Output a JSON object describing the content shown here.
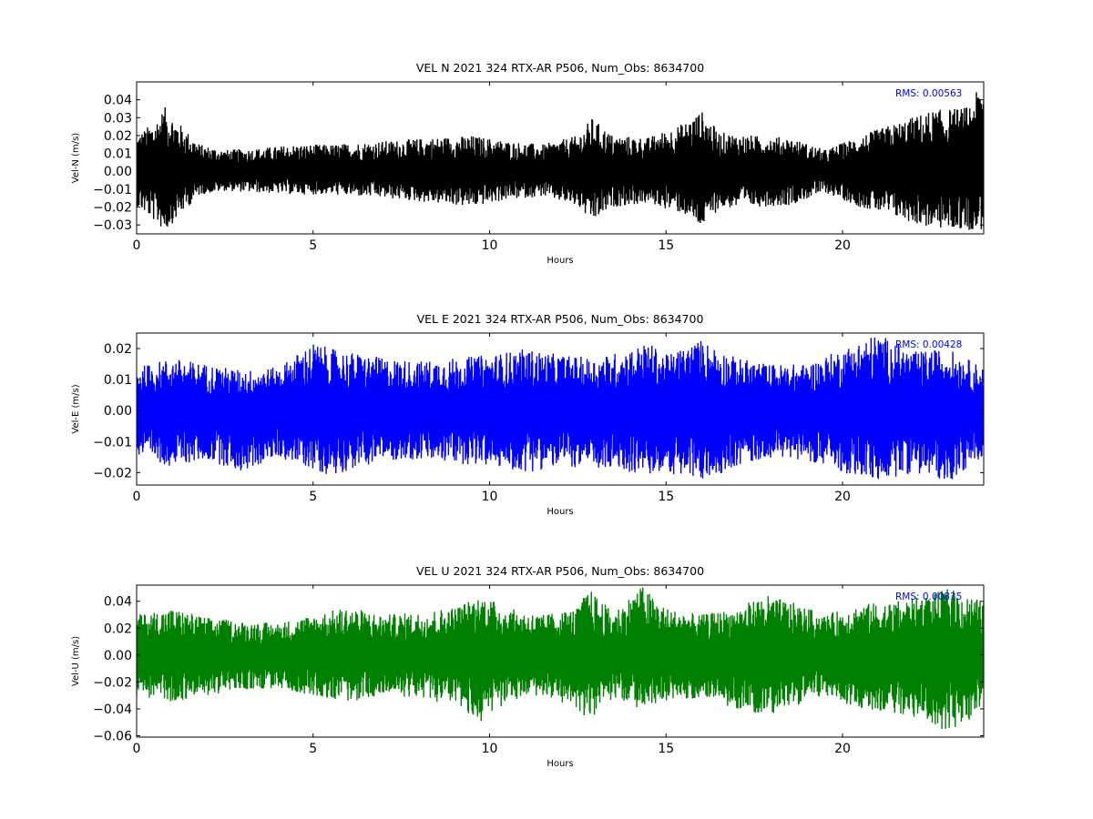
{
  "chart_data": [
    {
      "type": "line",
      "title": "VEL N 2021 324 RTX-AR  P506, Num_Obs: 8634700",
      "xlabel": "Hours",
      "ylabel": "Vel-N (m/s)",
      "xlim": [
        0,
        24
      ],
      "ylim": [
        -0.035,
        0.05
      ],
      "xticks": [
        0,
        5,
        10,
        15,
        20
      ],
      "yticks": [
        -0.03,
        -0.02,
        -0.01,
        0.0,
        0.01,
        0.02,
        0.03,
        0.04
      ],
      "ytick_labels": [
        "−0.03",
        "−0.02",
        "−0.01",
        "0.00",
        "0.01",
        "0.02",
        "0.03",
        "0.04"
      ],
      "annotation": "RMS:  0.00563",
      "annotation_color": "#0000ff",
      "series_color": "#000000",
      "rms": 0.00563,
      "envelope": {
        "x": [
          0,
          0.5,
          0.8,
          1.2,
          1.8,
          2.5,
          3.5,
          4.5,
          5.5,
          7,
          8.5,
          9.5,
          10.5,
          11.5,
          12.5,
          12.9,
          13.5,
          14.5,
          15.5,
          16,
          16.5,
          17.5,
          18.5,
          19.5,
          20.5,
          21.5,
          22.5,
          23.5,
          24
        ],
        "max": [
          0.02,
          0.028,
          0.036,
          0.027,
          0.015,
          0.012,
          0.013,
          0.015,
          0.015,
          0.017,
          0.019,
          0.02,
          0.017,
          0.015,
          0.02,
          0.03,
          0.02,
          0.019,
          0.027,
          0.034,
          0.022,
          0.02,
          0.019,
          0.012,
          0.02,
          0.027,
          0.034,
          0.036,
          0.05
        ],
        "min": [
          -0.02,
          -0.028,
          -0.034,
          -0.025,
          -0.013,
          -0.011,
          -0.012,
          -0.013,
          -0.013,
          -0.015,
          -0.018,
          -0.02,
          -0.016,
          -0.014,
          -0.02,
          -0.029,
          -0.02,
          -0.018,
          -0.024,
          -0.032,
          -0.021,
          -0.02,
          -0.019,
          -0.012,
          -0.02,
          -0.026,
          -0.032,
          -0.033,
          -0.033
        ]
      }
    },
    {
      "type": "line",
      "title": "VEL E 2021 324 RTX-AR  P506, Num_Obs: 8634700",
      "xlabel": "Hours",
      "ylabel": "Vel-E (m/s)",
      "xlim": [
        0,
        24
      ],
      "ylim": [
        -0.024,
        0.025
      ],
      "xticks": [
        0,
        5,
        10,
        15,
        20
      ],
      "yticks": [
        -0.02,
        -0.01,
        0.0,
        0.01,
        0.02
      ],
      "ytick_labels": [
        "−0.02",
        "−0.01",
        "0.00",
        "0.01",
        "0.02"
      ],
      "annotation": "RMS:  0.00428",
      "annotation_color": "#0000ff",
      "series_color": "#0000ff",
      "rms": 0.00428,
      "envelope": {
        "x": [
          0,
          1,
          2,
          3,
          4,
          5,
          5.5,
          7,
          8,
          9,
          10,
          11,
          12,
          13,
          14,
          14.5,
          15,
          16,
          17,
          18,
          19,
          20,
          21,
          22,
          23,
          24
        ],
        "max": [
          0.014,
          0.017,
          0.015,
          0.013,
          0.014,
          0.022,
          0.02,
          0.017,
          0.016,
          0.017,
          0.018,
          0.02,
          0.018,
          0.017,
          0.02,
          0.022,
          0.018,
          0.023,
          0.017,
          0.015,
          0.015,
          0.02,
          0.025,
          0.019,
          0.02,
          0.014
        ],
        "min": [
          -0.015,
          -0.018,
          -0.016,
          -0.02,
          -0.015,
          -0.019,
          -0.021,
          -0.016,
          -0.016,
          -0.017,
          -0.018,
          -0.02,
          -0.018,
          -0.019,
          -0.02,
          -0.021,
          -0.02,
          -0.023,
          -0.018,
          -0.015,
          -0.016,
          -0.02,
          -0.023,
          -0.02,
          -0.023,
          -0.015
        ]
      }
    },
    {
      "type": "line",
      "title": "VEL U 2021 324 RTX-AR  P506, Num_Obs: 8634700",
      "xlabel": "Hours",
      "ylabel": "Vel-U (m/s)",
      "xlim": [
        0,
        24
      ],
      "ylim": [
        -0.061,
        0.052
      ],
      "xticks": [
        0,
        5,
        10,
        15,
        20
      ],
      "yticks": [
        -0.06,
        -0.04,
        -0.02,
        0.0,
        0.02,
        0.04
      ],
      "ytick_labels": [
        "−0.06",
        "−0.04",
        "−0.02",
        "0.00",
        "0.02",
        "0.04"
      ],
      "annotation": "RMS:  0.00835",
      "annotation_color": "#0000ff",
      "series_color": "#008000",
      "rms": 0.00835,
      "envelope": {
        "x": [
          0,
          1,
          2,
          3,
          4,
          5,
          6,
          7,
          8,
          9,
          9.8,
          10.5,
          11.5,
          12.5,
          12.8,
          13.5,
          14.3,
          15,
          16,
          17,
          17.8,
          18.5,
          19.5,
          20.5,
          21.5,
          22.5,
          23,
          23.5,
          24
        ],
        "max": [
          0.03,
          0.035,
          0.028,
          0.025,
          0.024,
          0.03,
          0.036,
          0.03,
          0.032,
          0.036,
          0.045,
          0.035,
          0.03,
          0.035,
          0.05,
          0.032,
          0.052,
          0.035,
          0.03,
          0.035,
          0.045,
          0.04,
          0.03,
          0.038,
          0.04,
          0.045,
          0.05,
          0.045,
          0.04
        ],
        "min": [
          -0.03,
          -0.035,
          -0.03,
          -0.026,
          -0.025,
          -0.03,
          -0.035,
          -0.03,
          -0.032,
          -0.038,
          -0.05,
          -0.035,
          -0.03,
          -0.04,
          -0.05,
          -0.032,
          -0.04,
          -0.035,
          -0.032,
          -0.04,
          -0.045,
          -0.04,
          -0.03,
          -0.04,
          -0.043,
          -0.05,
          -0.058,
          -0.05,
          -0.04
        ]
      }
    }
  ]
}
